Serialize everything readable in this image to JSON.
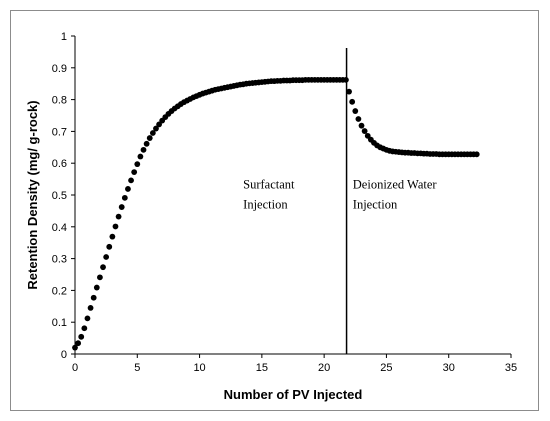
{
  "chart_data": {
    "type": "scatter",
    "title": "",
    "xlabel": "Number of PV Injected",
    "ylabel": "Retention Density (mg/ g-rock)",
    "xlim": [
      0,
      35
    ],
    "ylim": [
      0,
      1
    ],
    "x_ticks": [
      "0",
      "5",
      "10",
      "15",
      "20",
      "25",
      "30",
      "35"
    ],
    "y_ticks": [
      "0",
      "0.1",
      "0.2",
      "0.3",
      "0.4",
      "0.5",
      "0.6",
      "0.7",
      "0.8",
      "0.9",
      "1"
    ],
    "grid": false,
    "legend": "none",
    "marker_color": "#000000",
    "series": [
      {
        "x": [
          0,
          0.25,
          0.5,
          0.75,
          1.0,
          1.25,
          1.5,
          1.75,
          2.0,
          2.25,
          2.5,
          2.75,
          3.0,
          3.25,
          3.5,
          3.75,
          4.0,
          4.25,
          4.5,
          4.75,
          5.0,
          5.25,
          5.5,
          5.75,
          6.0,
          6.25,
          6.5,
          6.75,
          7.0,
          7.25,
          7.5,
          7.75,
          8.0,
          8.25,
          8.5,
          8.75,
          9.0,
          9.25,
          9.5,
          9.75,
          10.0,
          10.25,
          10.5,
          10.75,
          11.0,
          11.25,
          11.5,
          11.75,
          12.0,
          12.25,
          12.5,
          12.75,
          13.0,
          13.25,
          13.5,
          13.75,
          14.0,
          14.25,
          14.5,
          14.75,
          15.0,
          15.25,
          15.5,
          15.75,
          16.0,
          16.25,
          16.5,
          16.75,
          17.0,
          17.25,
          17.5,
          17.75,
          18.0,
          18.25,
          18.5,
          18.75,
          19.0,
          19.25,
          19.5,
          19.75,
          20.0,
          20.25,
          20.5,
          20.75,
          21.0,
          21.25,
          21.5,
          21.75,
          22.0,
          22.25,
          22.5,
          22.75,
          23.0,
          23.25,
          23.5,
          23.75,
          24.0,
          24.25,
          24.5,
          24.75,
          25.0,
          25.25,
          25.5,
          25.75,
          26.0,
          26.25,
          26.5,
          26.75,
          27.0,
          27.25,
          27.5,
          27.75,
          28.0,
          28.25,
          28.5,
          28.75,
          29.0,
          29.25,
          29.5,
          29.75,
          30.0,
          30.25,
          30.5,
          30.75,
          31.0,
          31.25,
          31.5,
          31.75,
          32.0,
          32.25
        ],
        "y": [
          0.02,
          0.034,
          0.054,
          0.081,
          0.112,
          0.145,
          0.177,
          0.209,
          0.241,
          0.273,
          0.305,
          0.337,
          0.369,
          0.401,
          0.432,
          0.462,
          0.491,
          0.519,
          0.546,
          0.572,
          0.597,
          0.621,
          0.642,
          0.661,
          0.679,
          0.695,
          0.709,
          0.722,
          0.734,
          0.745,
          0.755,
          0.764,
          0.772,
          0.779,
          0.786,
          0.792,
          0.797,
          0.802,
          0.807,
          0.811,
          0.815,
          0.819,
          0.822,
          0.825,
          0.828,
          0.831,
          0.833,
          0.835,
          0.837,
          0.839,
          0.841,
          0.843,
          0.845,
          0.847,
          0.848,
          0.85,
          0.851,
          0.852,
          0.853,
          0.854,
          0.855,
          0.856,
          0.857,
          0.858,
          0.858,
          0.859,
          0.859,
          0.86,
          0.86,
          0.86,
          0.861,
          0.861,
          0.861,
          0.861,
          0.862,
          0.862,
          0.862,
          0.862,
          0.862,
          0.862,
          0.862,
          0.862,
          0.862,
          0.862,
          0.862,
          0.862,
          0.862,
          0.862,
          0.825,
          0.793,
          0.764,
          0.739,
          0.718,
          0.701,
          0.686,
          0.674,
          0.664,
          0.656,
          0.65,
          0.646,
          0.642,
          0.639,
          0.637,
          0.636,
          0.635,
          0.634,
          0.633,
          0.633,
          0.632,
          0.632,
          0.631,
          0.631,
          0.63,
          0.63,
          0.629,
          0.629,
          0.629,
          0.628,
          0.628,
          0.628,
          0.628,
          0.628,
          0.628,
          0.628,
          0.628,
          0.628,
          0.628,
          0.628,
          0.628,
          0.628
        ]
      }
    ],
    "divider_x": 21.8,
    "annotations": [
      {
        "lines": [
          "Surfactant",
          "Injection"
        ],
        "x": 13.5,
        "y": 0.52
      },
      {
        "lines": [
          "Deionized Water",
          "Injection"
        ],
        "x": 22.3,
        "y": 0.52
      }
    ]
  }
}
